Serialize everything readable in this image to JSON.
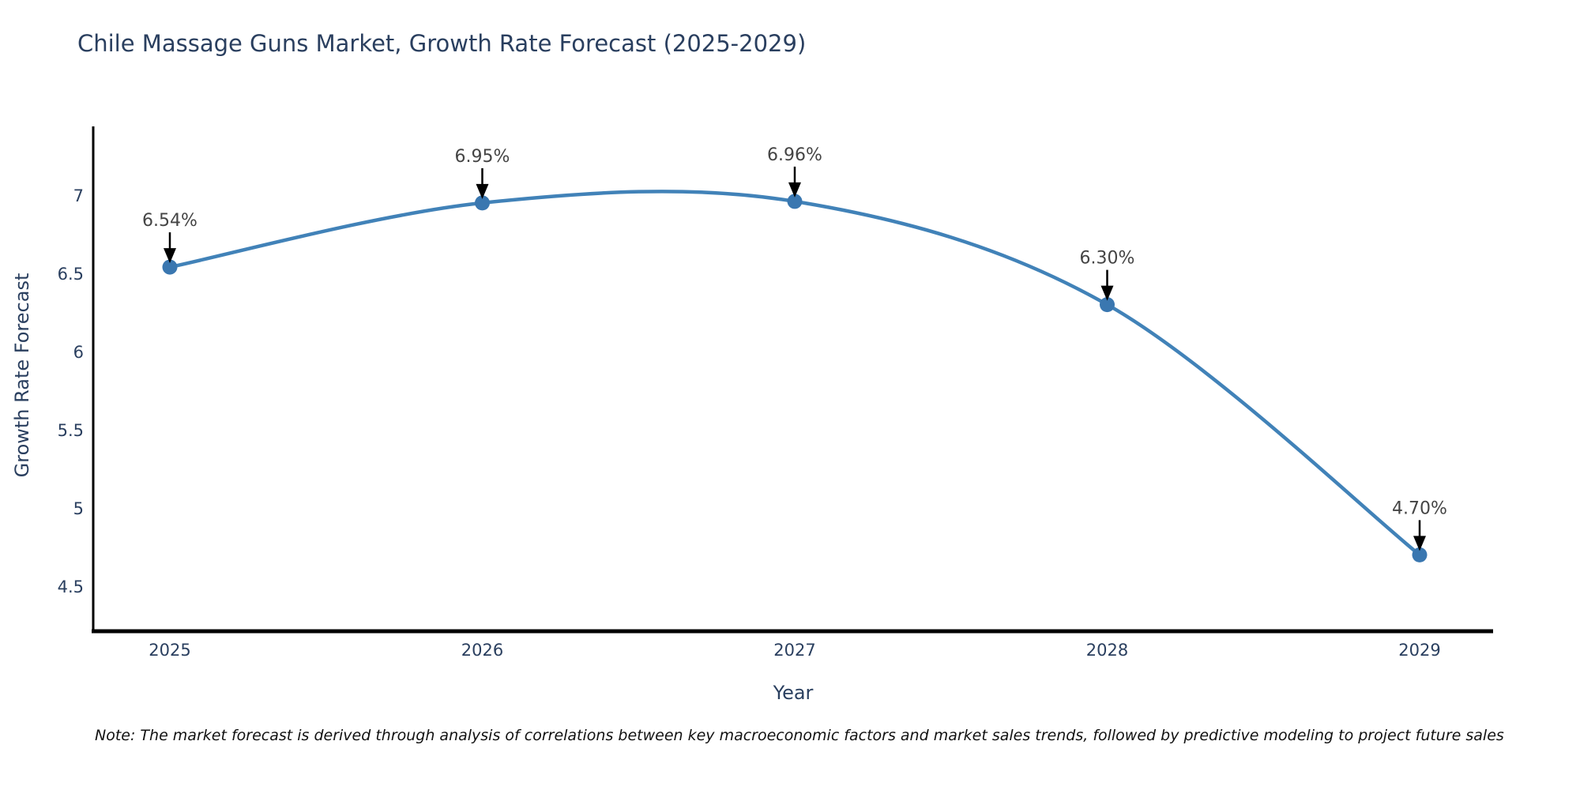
{
  "chart_data": {
    "type": "line",
    "title": "Chile Massage Guns Market, Growth Rate Forecast (2025-2029)",
    "xlabel": "Year",
    "ylabel": "Growth Rate Forecast",
    "x": [
      2025,
      2026,
      2027,
      2028,
      2029
    ],
    "values": [
      6.54,
      6.95,
      6.96,
      6.3,
      4.7
    ],
    "point_labels": [
      "6.54%",
      "6.95%",
      "6.96%",
      "6.30%",
      "4.70%"
    ],
    "yticks": [
      4.5,
      5,
      5.5,
      6,
      6.5,
      7
    ],
    "ytick_labels": [
      "4.5",
      "5",
      "5.5",
      "6",
      "6.5",
      "7"
    ],
    "xtick_labels": [
      "2025",
      "2026",
      "2027",
      "2028",
      "2029"
    ],
    "ylim": [
      4.21,
      7.44
    ],
    "xlim": [
      2024.75,
      2029.24
    ],
    "grid": false,
    "legend": "none",
    "line_shape": "spline",
    "line_color": "#4182b8",
    "marker_color": "#3a77b0",
    "axis_color": "#000000",
    "tick_color": "#2a3f5f",
    "annotation_text_color": "#444444",
    "annotation_arrow_color": "#000000",
    "background_color": "#ffffff",
    "note": "Note: The market forecast is derived through analysis of correlations between key macroeconomic factors and market sales trends, followed by predictive modeling to project future sales"
  }
}
